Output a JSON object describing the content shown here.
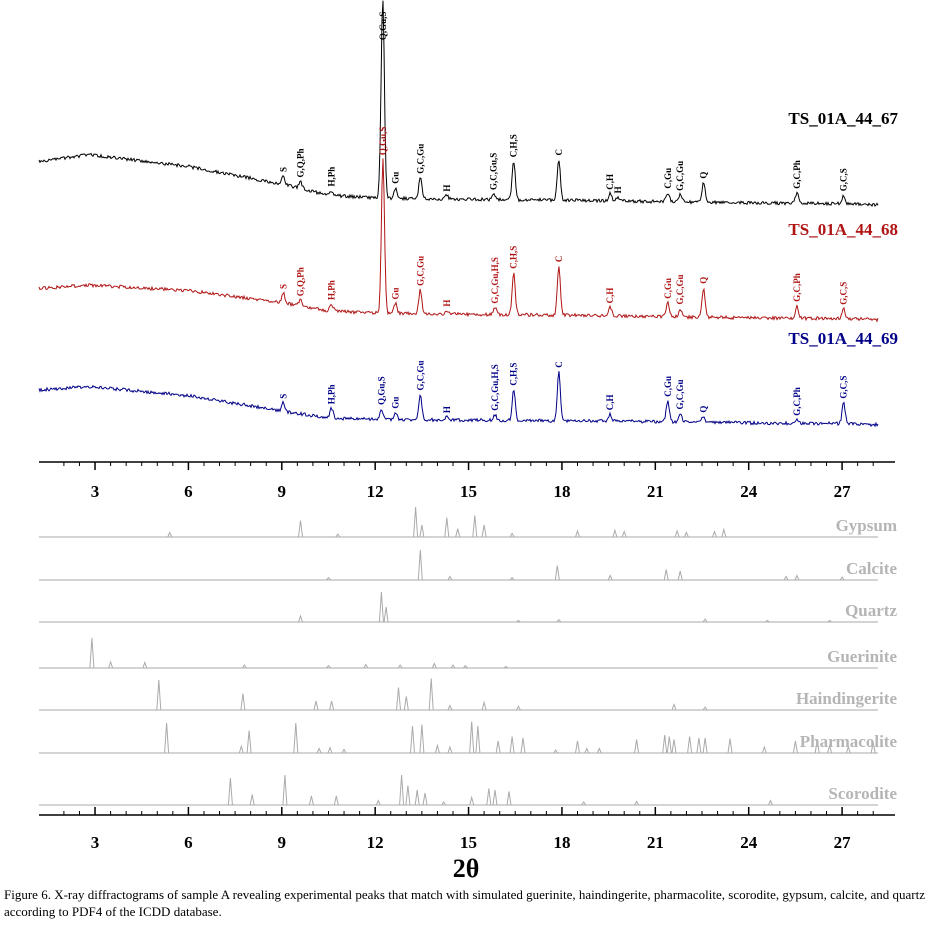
{
  "chart_data": {
    "type": "line",
    "title": "",
    "xlabel": "2θ",
    "ylabel": "",
    "xlim": [
      1.2,
      28.7
    ],
    "xticks": [
      3,
      6,
      9,
      12,
      15,
      18,
      21,
      24,
      27
    ],
    "grid": false,
    "experimental": {
      "colors": {
        "TS_01A_44_67": "#000000",
        "TS_01A_44_68": "#b01515",
        "TS_01A_44_69": "#000088"
      },
      "series": [
        {
          "name": "TS_01A_44_67",
          "baseline": [
            [
              1.2,
              0.62
            ],
            [
              2.8,
              0.72
            ],
            [
              6,
              0.55
            ],
            [
              9,
              0.3
            ],
            [
              10.5,
              0.14
            ],
            [
              12,
              0.1
            ],
            [
              15,
              0.08
            ],
            [
              18,
              0.07
            ],
            [
              21,
              0.05
            ],
            [
              24,
              0.03
            ],
            [
              27,
              0.02
            ],
            [
              28.5,
              0.0
            ]
          ],
          "peaks": [
            {
              "x": 9.05,
              "h": 0.12,
              "label": "S"
            },
            {
              "x": 9.6,
              "h": 0.1,
              "label": "G,Q,Ph"
            },
            {
              "x": 10.6,
              "h": 0.07,
              "label": "H,Ph"
            },
            {
              "x": 12.2,
              "h": 0.5,
              "label": ""
            },
            {
              "x": 12.25,
              "h": 2.55,
              "label": "Q,Gu,S"
            },
            {
              "x": 12.65,
              "h": 0.15,
              "label": "Gu"
            },
            {
              "x": 13.45,
              "h": 0.3,
              "label": "G,C,Gu"
            },
            {
              "x": 14.3,
              "h": 0.05,
              "label": "H"
            },
            {
              "x": 15.8,
              "h": 0.08,
              "label": "G,C,Gu,S"
            },
            {
              "x": 16.45,
              "h": 0.55,
              "label": "C,H,S"
            },
            {
              "x": 17.9,
              "h": 0.58,
              "label": "C"
            },
            {
              "x": 19.55,
              "h": 0.1,
              "label": "C,H"
            },
            {
              "x": 19.8,
              "h": 0.05,
              "label": "H"
            },
            {
              "x": 21.4,
              "h": 0.13,
              "label": "C,Gu"
            },
            {
              "x": 21.8,
              "h": 0.1,
              "label": "G,C,Gu"
            },
            {
              "x": 22.55,
              "h": 0.28,
              "label": "Q"
            },
            {
              "x": 25.55,
              "h": 0.15,
              "label": "G,C,Ph"
            },
            {
              "x": 27.05,
              "h": 0.12,
              "label": "G,C,S"
            }
          ]
        },
        {
          "name": "TS_01A_44_68",
          "baseline": [
            [
              1.2,
              0.45
            ],
            [
              2.8,
              0.5
            ],
            [
              6,
              0.42
            ],
            [
              9,
              0.25
            ],
            [
              10.5,
              0.13
            ],
            [
              12,
              0.1
            ],
            [
              15,
              0.08
            ],
            [
              18,
              0.07
            ],
            [
              21,
              0.05
            ],
            [
              24,
              0.03
            ],
            [
              27,
              0.02
            ],
            [
              28.5,
              0.0
            ]
          ],
          "peaks": [
            {
              "x": 9.05,
              "h": 0.14,
              "label": "S"
            },
            {
              "x": 9.6,
              "h": 0.08,
              "label": "G,Q,Ph"
            },
            {
              "x": 10.6,
              "h": 0.1,
              "label": "H,Ph"
            },
            {
              "x": 12.25,
              "h": 2.2,
              "label": "Q,Gu,S"
            },
            {
              "x": 12.65,
              "h": 0.14,
              "label": "Gu"
            },
            {
              "x": 13.45,
              "h": 0.34,
              "label": "G,C,Gu"
            },
            {
              "x": 14.3,
              "h": 0.05,
              "label": "H"
            },
            {
              "x": 15.85,
              "h": 0.1,
              "label": "G,C,Gu,H,S"
            },
            {
              "x": 16.45,
              "h": 0.6,
              "label": "C,H,S"
            },
            {
              "x": 17.9,
              "h": 0.7,
              "label": "C"
            },
            {
              "x": 19.55,
              "h": 0.12,
              "label": "C,H"
            },
            {
              "x": 21.4,
              "h": 0.2,
              "label": "C,Gu"
            },
            {
              "x": 21.8,
              "h": 0.12,
              "label": "G,C,Gu"
            },
            {
              "x": 22.55,
              "h": 0.42,
              "label": "Q"
            },
            {
              "x": 25.55,
              "h": 0.18,
              "label": "G,C,Ph"
            },
            {
              "x": 27.05,
              "h": 0.14,
              "label": "G,C,S"
            }
          ]
        },
        {
          "name": "TS_01A_44_69",
          "baseline": [
            [
              1.2,
              0.5
            ],
            [
              2.8,
              0.55
            ],
            [
              6,
              0.42
            ],
            [
              9,
              0.2
            ],
            [
              10.5,
              0.1
            ],
            [
              12,
              0.08
            ],
            [
              15,
              0.07
            ],
            [
              18,
              0.06
            ],
            [
              21,
              0.05
            ],
            [
              24,
              0.03
            ],
            [
              27,
              0.02
            ],
            [
              28.5,
              0.0
            ]
          ],
          "peaks": [
            {
              "x": 9.05,
              "h": 0.12,
              "label": "S"
            },
            {
              "x": 10.6,
              "h": 0.14,
              "label": "H,Ph"
            },
            {
              "x": 12.2,
              "h": 0.15,
              "label": "Q,Gu,S"
            },
            {
              "x": 12.65,
              "h": 0.1,
              "label": "Gu"
            },
            {
              "x": 13.45,
              "h": 0.36,
              "label": "G,C,Gu"
            },
            {
              "x": 14.3,
              "h": 0.04,
              "label": "H"
            },
            {
              "x": 15.85,
              "h": 0.08,
              "label": "G,C,Gu,H,S"
            },
            {
              "x": 16.45,
              "h": 0.44,
              "label": "C,H,S"
            },
            {
              "x": 17.9,
              "h": 0.7,
              "label": "C"
            },
            {
              "x": 19.55,
              "h": 0.1,
              "label": "C,H"
            },
            {
              "x": 21.4,
              "h": 0.3,
              "label": "C,Gu"
            },
            {
              "x": 21.8,
              "h": 0.12,
              "label": "G,C,Gu"
            },
            {
              "x": 22.55,
              "h": 0.08,
              "label": "Q"
            },
            {
              "x": 25.55,
              "h": 0.05,
              "label": "G,C,Ph"
            },
            {
              "x": 27.05,
              "h": 0.3,
              "label": "G,C,S"
            }
          ]
        }
      ]
    },
    "reference": {
      "color": "#aaaaaa",
      "label_color": "#b5b5b5",
      "series": [
        {
          "name": "Gypsum",
          "peaks": [
            [
              5.4,
              0.15
            ],
            [
              9.6,
              0.55
            ],
            [
              10.8,
              0.1
            ],
            [
              13.3,
              1.0
            ],
            [
              13.5,
              0.4
            ],
            [
              14.3,
              0.65
            ],
            [
              14.65,
              0.28
            ],
            [
              15.2,
              0.72
            ],
            [
              15.5,
              0.4
            ],
            [
              16.4,
              0.12
            ],
            [
              18.5,
              0.2
            ],
            [
              19.7,
              0.22
            ],
            [
              20.0,
              0.18
            ],
            [
              21.7,
              0.2
            ],
            [
              22.0,
              0.15
            ],
            [
              22.9,
              0.18
            ],
            [
              23.2,
              0.25
            ]
          ]
        },
        {
          "name": "Calcite",
          "peaks": [
            [
              10.5,
              0.08
            ],
            [
              13.45,
              1.0
            ],
            [
              14.4,
              0.12
            ],
            [
              16.4,
              0.08
            ],
            [
              17.85,
              0.48
            ],
            [
              19.55,
              0.15
            ],
            [
              21.35,
              0.35
            ],
            [
              21.8,
              0.3
            ],
            [
              25.2,
              0.12
            ],
            [
              25.55,
              0.15
            ],
            [
              27.0,
              0.1
            ]
          ]
        },
        {
          "name": "Quartz",
          "peaks": [
            [
              9.6,
              0.2
            ],
            [
              12.2,
              1.0
            ],
            [
              12.35,
              0.5
            ],
            [
              16.6,
              0.05
            ],
            [
              17.9,
              0.08
            ],
            [
              22.6,
              0.1
            ],
            [
              24.6,
              0.05
            ],
            [
              26.6,
              0.05
            ]
          ]
        },
        {
          "name": "Guerinite",
          "peaks": [
            [
              2.9,
              1.0
            ],
            [
              3.5,
              0.2
            ],
            [
              4.6,
              0.18
            ],
            [
              7.8,
              0.1
            ],
            [
              10.5,
              0.08
            ],
            [
              11.7,
              0.12
            ],
            [
              12.8,
              0.1
            ],
            [
              13.9,
              0.15
            ],
            [
              14.5,
              0.1
            ],
            [
              14.9,
              0.08
            ],
            [
              16.2,
              0.05
            ]
          ]
        },
        {
          "name": "Haindingerite",
          "peaks": [
            [
              5.05,
              1.0
            ],
            [
              7.75,
              0.55
            ],
            [
              10.1,
              0.3
            ],
            [
              10.6,
              0.3
            ],
            [
              12.75,
              0.75
            ],
            [
              13.0,
              0.45
            ],
            [
              13.8,
              1.05
            ],
            [
              14.4,
              0.15
            ],
            [
              15.5,
              0.25
            ],
            [
              16.6,
              0.12
            ],
            [
              21.6,
              0.18
            ],
            [
              22.6,
              0.1
            ]
          ]
        },
        {
          "name": "Pharmacolite",
          "peaks": [
            [
              5.3,
              1.0
            ],
            [
              7.7,
              0.22
            ],
            [
              7.95,
              0.75
            ],
            [
              9.45,
              1.0
            ],
            [
              10.2,
              0.15
            ],
            [
              10.55,
              0.18
            ],
            [
              11.0,
              0.12
            ],
            [
              13.2,
              0.9
            ],
            [
              13.5,
              0.95
            ],
            [
              14.0,
              0.25
            ],
            [
              14.4,
              0.2
            ],
            [
              15.1,
              1.05
            ],
            [
              15.3,
              0.9
            ],
            [
              15.95,
              0.4
            ],
            [
              16.4,
              0.55
            ],
            [
              16.75,
              0.5
            ],
            [
              17.8,
              0.1
            ],
            [
              18.5,
              0.4
            ],
            [
              18.8,
              0.15
            ],
            [
              19.2,
              0.15
            ],
            [
              20.4,
              0.45
            ],
            [
              21.3,
              0.6
            ],
            [
              21.45,
              0.55
            ],
            [
              21.6,
              0.45
            ],
            [
              22.1,
              0.55
            ],
            [
              22.4,
              0.5
            ],
            [
              22.6,
              0.5
            ],
            [
              23.4,
              0.48
            ],
            [
              24.5,
              0.2
            ],
            [
              25.5,
              0.4
            ],
            [
              26.2,
              0.45
            ],
            [
              26.6,
              0.25
            ],
            [
              27.2,
              0.2
            ],
            [
              28.0,
              0.35
            ]
          ]
        },
        {
          "name": "Scorodite",
          "peaks": [
            [
              7.35,
              0.9
            ],
            [
              8.05,
              0.35
            ],
            [
              9.1,
              1.0
            ],
            [
              9.95,
              0.3
            ],
            [
              10.75,
              0.3
            ],
            [
              12.1,
              0.15
            ],
            [
              12.85,
              1.0
            ],
            [
              13.05,
              0.65
            ],
            [
              13.35,
              0.5
            ],
            [
              13.6,
              0.4
            ],
            [
              14.2,
              0.1
            ],
            [
              15.1,
              0.25
            ],
            [
              15.65,
              0.55
            ],
            [
              15.85,
              0.5
            ],
            [
              16.3,
              0.45
            ],
            [
              18.7,
              0.1
            ],
            [
              20.4,
              0.12
            ],
            [
              24.7,
              0.15
            ]
          ]
        }
      ]
    }
  },
  "caption": "Figure 6. X-ray diffractograms of sample A revealing experimental peaks that match with simulated guerinite, haindingerite, pharmacolite, scorodite, gypsum, calcite, and quartz according to PDF4 of the ICDD database."
}
